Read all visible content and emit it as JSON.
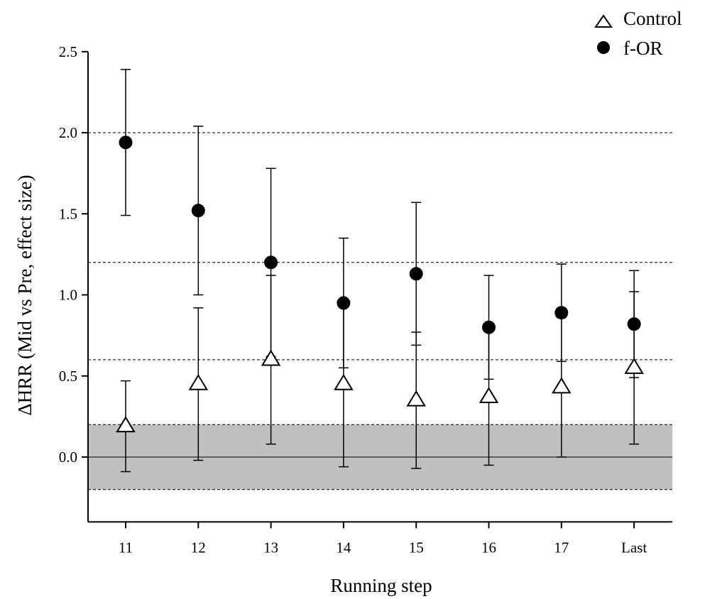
{
  "chart_data": {
    "type": "scatter",
    "title": "",
    "xlabel": "Running step",
    "ylabel": "ΔHRR (Mid vs Pre, effect size)",
    "categories": [
      "11",
      "12",
      "13",
      "14",
      "15",
      "16",
      "17",
      "Last"
    ],
    "ylim": [
      -0.4,
      2.5
    ],
    "yticks": [
      "0.0",
      "0.5",
      "1.0",
      "1.5",
      "2.0",
      "2.5"
    ],
    "legend_position": "top-right",
    "reference_lines": [
      -0.2,
      0.2,
      0.6,
      1.2,
      2.0
    ],
    "zero_line": 0.0,
    "shaded_band": [
      -0.2,
      0.2
    ],
    "colors": {
      "band": "#c0c0c0",
      "marker": "#000000",
      "line": "#000000"
    },
    "series": [
      {
        "name": "Control",
        "marker": "triangle-open",
        "values": [
          0.19,
          0.45,
          0.6,
          0.45,
          0.35,
          0.37,
          0.43,
          0.55
        ],
        "lower": [
          -0.09,
          -0.02,
          0.08,
          -0.06,
          -0.07,
          -0.05,
          0.0,
          0.08
        ],
        "upper": [
          0.47,
          0.92,
          1.12,
          0.97,
          0.77,
          0.79,
          0.86,
          1.02
        ]
      },
      {
        "name": "f-OR",
        "marker": "circle-filled",
        "values": [
          1.94,
          1.52,
          1.2,
          0.95,
          1.13,
          0.8,
          0.89,
          0.82
        ],
        "lower": [
          1.49,
          1.0,
          0.62,
          0.55,
          0.69,
          0.48,
          0.59,
          0.49
        ],
        "upper": [
          2.39,
          2.04,
          1.78,
          1.35,
          1.57,
          1.12,
          1.19,
          1.15
        ]
      }
    ]
  }
}
